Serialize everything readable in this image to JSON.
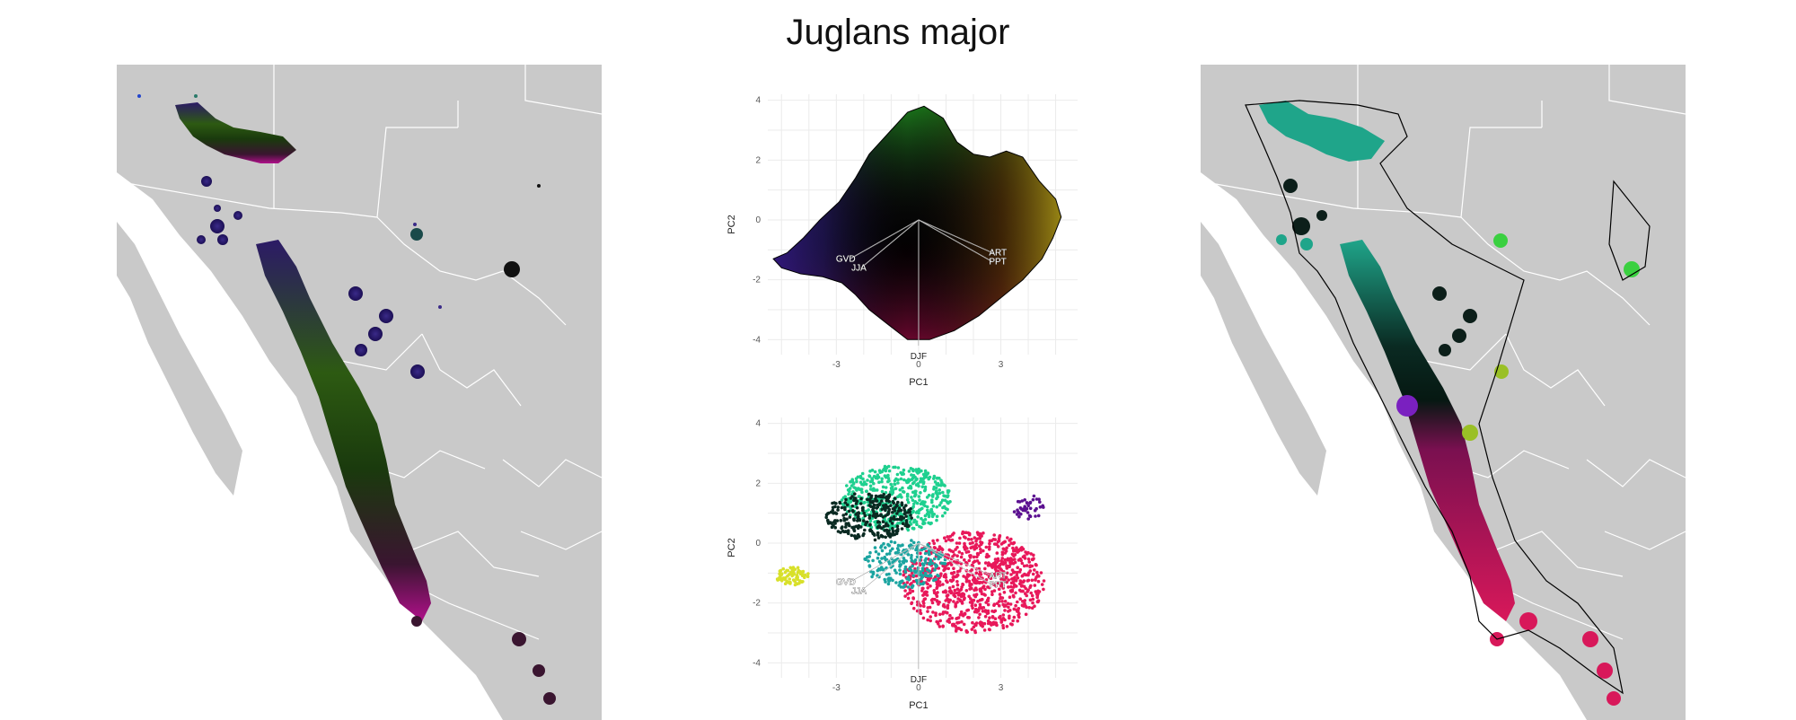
{
  "page": {
    "title": "Juglans major"
  },
  "maps": {
    "land_color": "#c9c9c9",
    "border_color": "#ffffff",
    "sea_color": "#ffffff",
    "range_outline_color": "#000000"
  },
  "chart_data": [
    {
      "type": "scatter",
      "panel": "pca-top",
      "description_style": "color-gradient climate space (PC1 x PC2) with convex outline",
      "xlabel": "PC1",
      "ylabel": "PC2",
      "xlim": [
        -5.5,
        5.8
      ],
      "ylim": [
        -4.5,
        4.2
      ],
      "xticks": [
        -3,
        0,
        3
      ],
      "yticks": [
        -4,
        -2,
        0,
        2,
        4
      ],
      "grid": true,
      "hull": [
        [
          -5.3,
          -1.3
        ],
        [
          -4.8,
          -1.1
        ],
        [
          -4.2,
          -0.6
        ],
        [
          -3.6,
          0.0
        ],
        [
          -2.9,
          0.6
        ],
        [
          -2.3,
          1.4
        ],
        [
          -1.8,
          2.2
        ],
        [
          -1.0,
          3.0
        ],
        [
          -0.4,
          3.6
        ],
        [
          0.2,
          3.8
        ],
        [
          0.9,
          3.4
        ],
        [
          1.4,
          2.6
        ],
        [
          2.0,
          2.2
        ],
        [
          2.6,
          2.1
        ],
        [
          3.2,
          2.3
        ],
        [
          3.8,
          2.1
        ],
        [
          4.4,
          1.3
        ],
        [
          5.0,
          0.7
        ],
        [
          5.2,
          0.1
        ],
        [
          4.9,
          -0.6
        ],
        [
          4.5,
          -1.3
        ],
        [
          3.8,
          -2.0
        ],
        [
          3.0,
          -2.6
        ],
        [
          2.2,
          -3.2
        ],
        [
          1.3,
          -3.7
        ],
        [
          0.4,
          -4.0
        ],
        [
          -0.4,
          -4.0
        ],
        [
          -1.1,
          -3.5
        ],
        [
          -1.8,
          -3.0
        ],
        [
          -2.3,
          -2.5
        ],
        [
          -2.8,
          -2.1
        ],
        [
          -3.5,
          -1.9
        ],
        [
          -4.3,
          -1.8
        ],
        [
          -5.0,
          -1.6
        ]
      ],
      "loadings": [
        {
          "label": "GVD",
          "x": -2.5,
          "y": -1.3
        },
        {
          "label": "JJA",
          "x": -2.1,
          "y": -1.6
        },
        {
          "label": "ART",
          "x": 2.7,
          "y": -1.1
        },
        {
          "label": "PPT",
          "x": 2.7,
          "y": -1.4
        },
        {
          "label": "DJF",
          "x": 0.0,
          "y": -4.2
        }
      ]
    },
    {
      "type": "scatter",
      "panel": "pca-bottom",
      "description_style": "species occurrence points colored by geographic position",
      "xlabel": "PC1",
      "ylabel": "PC2",
      "xlim": [
        -5.5,
        5.8
      ],
      "ylim": [
        -4.5,
        4.2
      ],
      "xticks": [
        -3,
        0,
        3
      ],
      "yticks": [
        -4,
        -2,
        0,
        2,
        4
      ],
      "grid": true,
      "clusters": [
        {
          "color": "#e8185a",
          "cx": 2.0,
          "cy": -1.3,
          "rx": 2.6,
          "ry": 1.7,
          "n": 900
        },
        {
          "color": "#1fd08f",
          "cx": -0.8,
          "cy": 1.5,
          "rx": 2.0,
          "ry": 1.1,
          "n": 500
        },
        {
          "color": "#0a2a22",
          "cx": -1.8,
          "cy": 0.9,
          "rx": 1.6,
          "ry": 0.8,
          "n": 300
        },
        {
          "color": "#1ba4a0",
          "cx": -0.5,
          "cy": -0.7,
          "rx": 1.5,
          "ry": 0.8,
          "n": 220
        },
        {
          "color": "#d8e02a",
          "cx": -4.6,
          "cy": -1.1,
          "rx": 0.6,
          "ry": 0.3,
          "n": 80
        },
        {
          "color": "#5b1090",
          "cx": 4.0,
          "cy": 1.2,
          "rx": 0.6,
          "ry": 0.4,
          "n": 40
        }
      ],
      "loadings": [
        {
          "label": "GVD",
          "x": -2.5,
          "y": -1.3
        },
        {
          "label": "JJA",
          "x": -2.1,
          "y": -1.6
        },
        {
          "label": "ART",
          "x": 2.7,
          "y": -1.1
        },
        {
          "label": "PPT",
          "x": 2.7,
          "y": -1.4
        },
        {
          "label": "DJF",
          "x": 0.0,
          "y": -4.2
        }
      ]
    }
  ]
}
